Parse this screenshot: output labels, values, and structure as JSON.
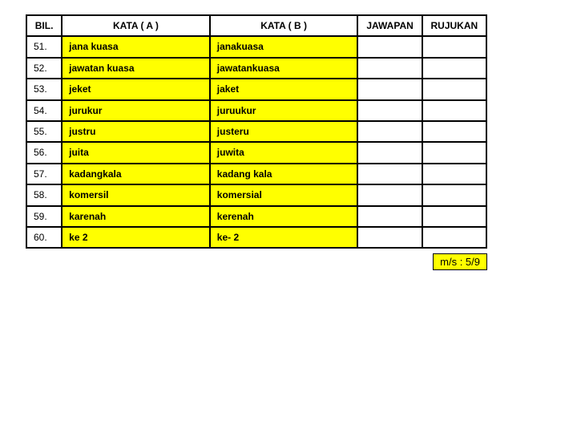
{
  "colors": {
    "highlight": "#ffff00",
    "border": "#000000",
    "background": "#ffffff"
  },
  "columns": {
    "bil": "BIL.",
    "kataA": "KATA  ( A )",
    "kataB": "KATA ( B )",
    "jawapan": "JAWAPAN",
    "rujukan": "RUJUKAN"
  },
  "rows": [
    {
      "bil": "51.",
      "a": "jana kuasa",
      "b": "janakuasa",
      "jwp": "",
      "ruj": ""
    },
    {
      "bil": "52.",
      "a": "jawatan kuasa",
      "b": "jawatankuasa",
      "jwp": "",
      "ruj": ""
    },
    {
      "bil": "53.",
      "a": "jeket",
      "b": "jaket",
      "jwp": "",
      "ruj": ""
    },
    {
      "bil": "54.",
      "a": "jurukur",
      "b": "juruukur",
      "jwp": "",
      "ruj": ""
    },
    {
      "bil": "55.",
      "a": "justru",
      "b": "justeru",
      "jwp": "",
      "ruj": ""
    },
    {
      "bil": "56.",
      "a": "juita",
      "b": "juwita",
      "jwp": "",
      "ruj": ""
    },
    {
      "bil": "57.",
      "a": "kadangkala",
      "b": "kadang kala",
      "jwp": "",
      "ruj": ""
    },
    {
      "bil": "58.",
      "a": "komersil",
      "b": "komersial",
      "jwp": "",
      "ruj": ""
    },
    {
      "bil": "59.",
      "a": "karenah",
      "b": "kerenah",
      "jwp": "",
      "ruj": ""
    },
    {
      "bil": "60.",
      "a": "ke 2",
      "b": "ke- 2",
      "jwp": "",
      "ruj": ""
    }
  ],
  "pager": "m/s : 5/9"
}
